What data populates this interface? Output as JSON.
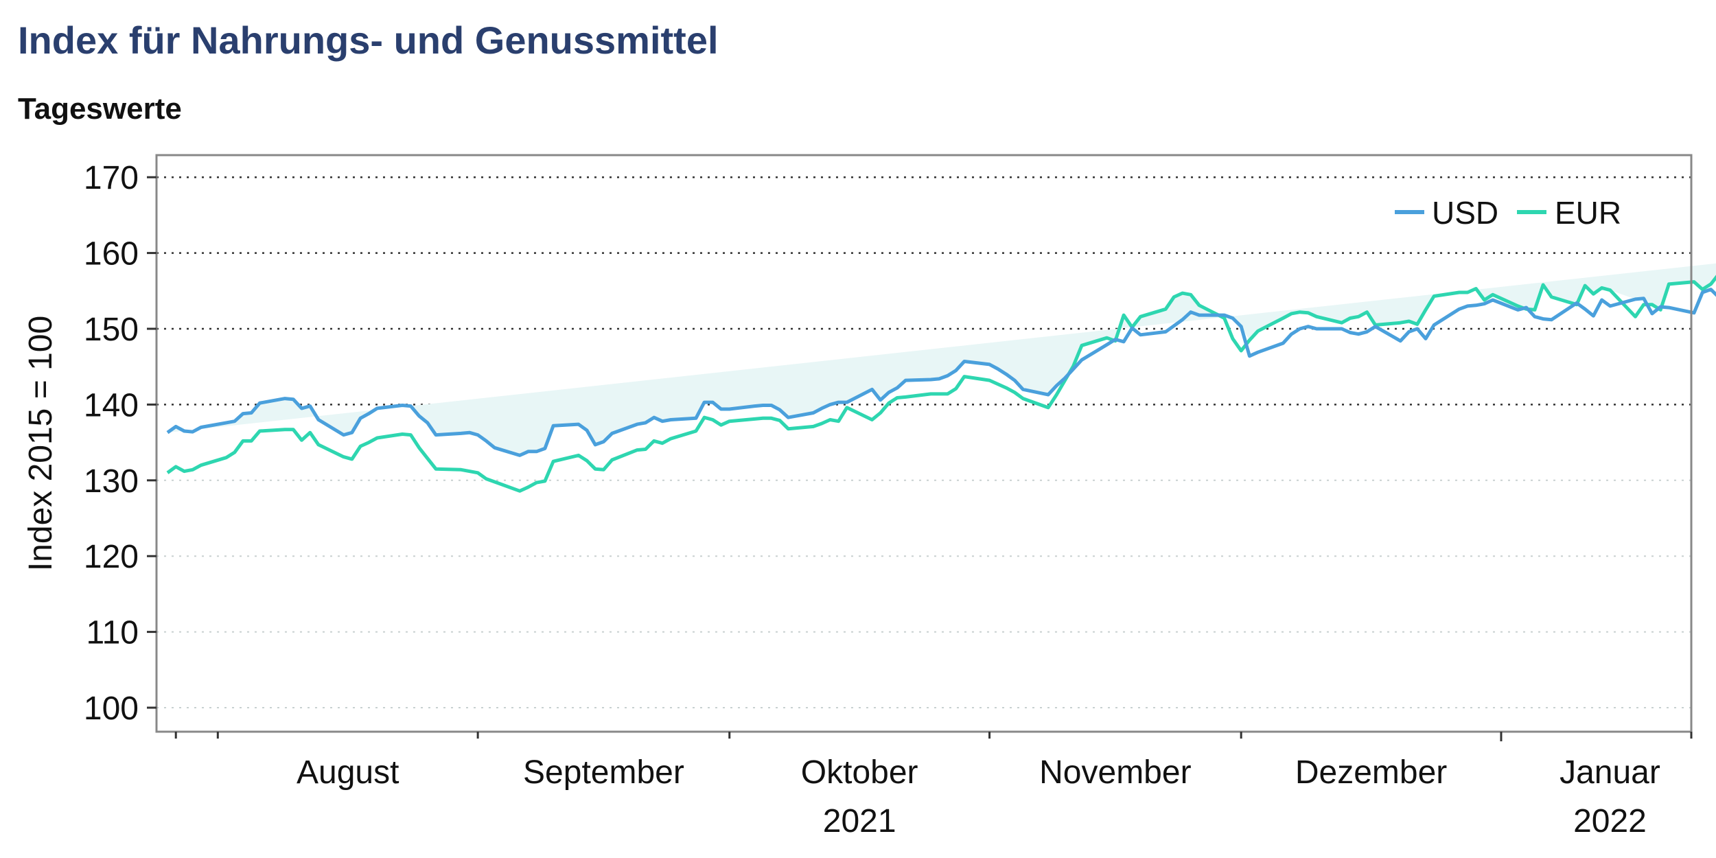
{
  "header": {
    "title": "Index für Nahrungs- und Genussmittel",
    "subtitle": "Tageswerte"
  },
  "colors": {
    "title": "#2a3f6e",
    "usd": "#4aa0dc",
    "eur": "#2ed6b0",
    "fill": "#e8f6f6"
  },
  "chart_data": {
    "type": "line",
    "ylabel": "Index 2015 = 100",
    "ylim": [
      97,
      173
    ],
    "yticks": [
      100,
      110,
      120,
      130,
      140,
      150,
      160,
      170
    ],
    "grid": "horizontal-dotted",
    "legend_position": "top-right",
    "x_axis": {
      "months": [
        "August",
        "September",
        "Oktober",
        "November",
        "Dezember",
        "Januar"
      ],
      "years": [
        {
          "label": "2021",
          "under_month": "Oktober"
        },
        {
          "label": "2022",
          "under_month": "Januar"
        }
      ]
    },
    "x_start": "2021-07-26",
    "series": [
      {
        "name": "USD",
        "values": [
          136.3,
          137.1,
          136.5,
          136.4,
          137.0,
          137.6,
          137.8,
          138.8,
          138.9,
          140.2,
          140.8,
          140.7,
          139.5,
          139.8,
          138.0,
          136.0,
          136.3,
          138.2,
          138.8,
          139.5,
          139.9,
          139.8,
          138.5,
          137.6,
          136.0,
          136.2,
          136.3,
          136.0,
          135.2,
          134.3,
          133.3,
          133.8,
          133.8,
          134.2,
          137.2,
          137.4,
          136.6,
          134.7,
          135.1,
          136.2,
          137.4,
          137.6,
          138.3,
          137.8,
          138.0,
          138.2,
          140.3,
          140.3,
          139.4,
          139.4,
          139.8,
          139.9,
          139.9,
          139.3,
          138.3,
          138.9,
          139.5,
          140.0,
          140.3,
          140.3,
          142.0,
          140.6,
          141.6,
          142.2,
          143.2,
          143.3,
          143.4,
          143.8,
          144.5,
          145.7,
          145.3,
          144.7,
          144.0,
          143.2,
          142.0,
          141.3,
          142.5,
          143.5,
          144.7,
          145.9,
          147.9,
          148.6,
          148.3,
          150.1,
          149.2,
          149.6,
          150.4,
          151.2,
          152.2,
          151.8,
          151.8,
          151.4,
          150.3,
          146.4,
          146.9,
          148.1,
          149.3,
          150.0,
          150.3,
          150.0,
          150.0,
          149.5,
          149.3,
          149.6,
          150.3,
          148.4,
          149.6,
          150.0,
          148.7,
          150.5,
          152.6,
          153.0,
          153.1,
          153.3,
          153.8,
          152.5,
          152.8,
          151.6,
          151.3,
          151.2,
          153.4,
          152.6,
          151.7,
          153.8,
          153.0,
          153.9,
          154.0,
          152.0,
          152.9,
          152.8,
          152.1,
          154.8,
          155.2,
          154.1,
          154.4,
          155.1,
          155.8,
          154.6,
          156.2,
          155.8
        ]
      },
      {
        "name": "EUR",
        "values": [
          131.0,
          131.8,
          131.2,
          131.4,
          132.0,
          133.0,
          133.7,
          135.2,
          135.2,
          136.5,
          136.7,
          136.7,
          135.3,
          136.3,
          134.7,
          133.1,
          132.8,
          134.5,
          135.0,
          135.6,
          136.1,
          136.0,
          134.3,
          132.9,
          131.5,
          131.4,
          131.2,
          131.0,
          130.2,
          129.8,
          128.6,
          129.1,
          129.7,
          129.9,
          132.5,
          133.3,
          132.6,
          131.5,
          131.4,
          132.7,
          134.0,
          134.1,
          135.2,
          134.9,
          135.5,
          136.5,
          138.3,
          138.0,
          137.3,
          137.8,
          138.1,
          138.2,
          138.2,
          137.9,
          136.8,
          137.1,
          137.5,
          138.0,
          137.8,
          139.6,
          138.0,
          138.9,
          140.2,
          140.9,
          141.0,
          141.4,
          141.4,
          141.4,
          142.1,
          143.7,
          143.2,
          142.7,
          142.2,
          141.6,
          140.8,
          139.6,
          141.3,
          143.2,
          145.1,
          147.8,
          148.8,
          148.4,
          151.8,
          150.2,
          151.6,
          152.6,
          154.2,
          154.7,
          154.5,
          153.1,
          151.4,
          148.7,
          147.1,
          148.5,
          149.7,
          151.4,
          152.0,
          152.2,
          152.1,
          151.6,
          150.8,
          151.4,
          151.6,
          152.2,
          150.5,
          150.8,
          151.0,
          150.6,
          152.5,
          154.3,
          154.8,
          154.8,
          155.3,
          153.8,
          154.5,
          153.0,
          152.6,
          152.5,
          155.8,
          154.2,
          153.2,
          155.7,
          154.6,
          155.4,
          155.1,
          151.6,
          153.2,
          153.2,
          152.5,
          155.9,
          156.2,
          155.2,
          155.9,
          157.3,
          157.8,
          158.3,
          160.3,
          159.4
        ]
      }
    ]
  }
}
